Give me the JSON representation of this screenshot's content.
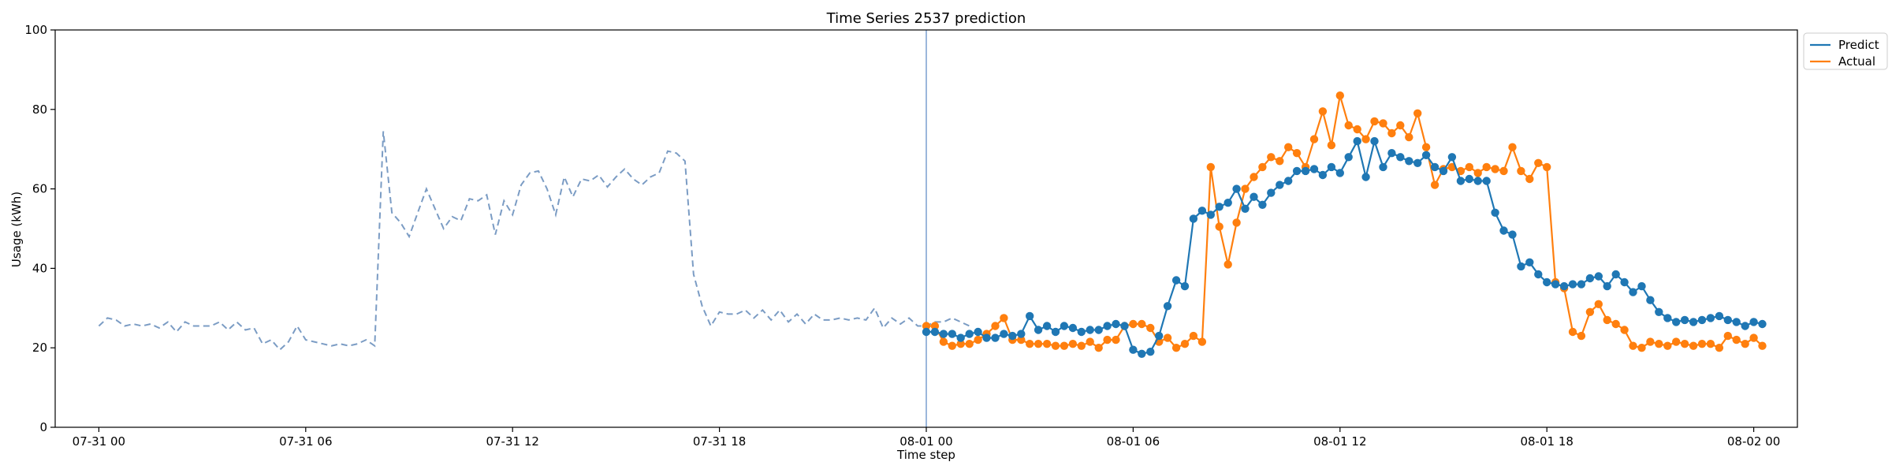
{
  "chart_data": {
    "type": "line",
    "title": "Time Series 2537 prediction",
    "xlabel": "Time step",
    "ylabel": "Usage (kWh)",
    "ylim": [
      0,
      100
    ],
    "yticks": [
      0,
      20,
      40,
      60,
      80,
      100
    ],
    "xlim": [
      "07-30 22:44",
      "08-02 01:16"
    ],
    "xticks": [
      "07-31 00",
      "07-31 06",
      "07-31 12",
      "07-31 18",
      "08-01 00",
      "08-01 06",
      "08-01 12",
      "08-01 18",
      "08-02 00"
    ],
    "grid": false,
    "legend_position": "top-right, outside plot",
    "forecast_start": "08-01 00:00",
    "history": {
      "style": "dashed",
      "color": "#7b9cc4",
      "x_start": "07-31 00:00",
      "step_minutes": 15,
      "values": [
        25.5,
        27.5,
        27,
        25.5,
        26,
        25.5,
        26,
        25,
        26.5,
        24,
        26.5,
        25.5,
        25.5,
        25.5,
        26.5,
        24.5,
        26.5,
        24.5,
        25,
        21,
        22,
        19.5,
        21.5,
        25.5,
        22,
        21.5,
        21,
        20.5,
        21,
        20.5,
        21,
        22,
        20.5,
        74.5,
        54,
        51.5,
        48,
        54,
        60,
        55,
        50,
        53,
        52,
        57.5,
        57,
        58.5,
        48.5,
        57,
        53.5,
        61,
        64,
        64.5,
        60,
        53.5,
        63,
        58,
        62.5,
        62,
        63.5,
        60.5,
        63,
        65,
        62.5,
        61,
        63,
        64,
        69.5,
        69,
        67,
        38.5,
        30.5,
        25.5,
        29,
        28.5,
        28.5,
        29.5,
        27.5,
        29.5,
        27,
        29.5,
        26.5,
        28.5,
        26,
        28.5,
        27,
        27,
        27.5,
        27,
        27.5,
        27,
        30,
        25,
        27.5,
        26,
        27.5,
        25.5,
        25.5,
        26.5,
        26.5,
        27.5,
        26.5,
        25.5
      ]
    },
    "series": [
      {
        "name": "Predict",
        "color": "#1f77b4",
        "x_start": "08-01 00:00",
        "step_minutes": 15,
        "values": [
          24,
          24,
          23.5,
          23.5,
          22.5,
          23.5,
          24,
          22.5,
          22.5,
          23.5,
          23,
          23.5,
          28,
          24.5,
          25.5,
          24,
          25.5,
          25,
          24,
          24.5,
          24.5,
          25.5,
          26,
          25.5,
          19.5,
          18.5,
          19,
          23,
          30.5,
          37,
          35.5,
          52.5,
          54.5,
          53.5,
          55.5,
          56.5,
          60,
          55,
          58,
          56,
          59,
          61,
          62,
          64.5,
          64.5,
          65,
          63.5,
          65.5,
          64,
          68,
          72,
          63,
          72,
          65.5,
          69,
          68,
          67,
          66.5,
          68.5,
          65.5,
          64.5,
          68,
          62,
          62.5,
          62,
          62,
          54,
          49.5,
          48.5,
          40.5,
          41.5,
          38.5,
          36.5,
          36,
          35.5,
          36,
          36,
          37.5,
          38,
          35.5,
          38.5,
          36.5,
          34,
          35.5,
          32,
          29,
          27.5,
          26.5,
          27,
          26.5,
          27,
          27.5,
          28,
          27,
          26.5,
          25.5,
          26.5,
          26
        ]
      },
      {
        "name": "Actual",
        "color": "#ff7f0e",
        "x_start": "08-01 00:00",
        "step_minutes": 15,
        "values": [
          25.5,
          25.5,
          21.5,
          20.5,
          21,
          21,
          22,
          23.5,
          25.5,
          27.5,
          22,
          22,
          21,
          21,
          21,
          20.5,
          20.5,
          21,
          20.5,
          21.5,
          20,
          22,
          22,
          25.5,
          26,
          26,
          25,
          21.5,
          22.5,
          20,
          21,
          23,
          21.5,
          65.5,
          50.5,
          41,
          51.5,
          60,
          63,
          65.5,
          68,
          67,
          70.5,
          69,
          65.5,
          72.5,
          79.5,
          71,
          83.5,
          76,
          75,
          72.5,
          77,
          76.5,
          74,
          76,
          73,
          79,
          70.5,
          61,
          65,
          65.5,
          64.5,
          65.5,
          64,
          65.5,
          65,
          64.5,
          70.5,
          64.5,
          62.5,
          66.5,
          65.5,
          36.5,
          35,
          24,
          23,
          29,
          31,
          27,
          26,
          24.5,
          20.5,
          20,
          21.5,
          21,
          20.5,
          21.5,
          21,
          20.5,
          21,
          21,
          20,
          23,
          22,
          21,
          22.5,
          20.5
        ]
      }
    ]
  }
}
